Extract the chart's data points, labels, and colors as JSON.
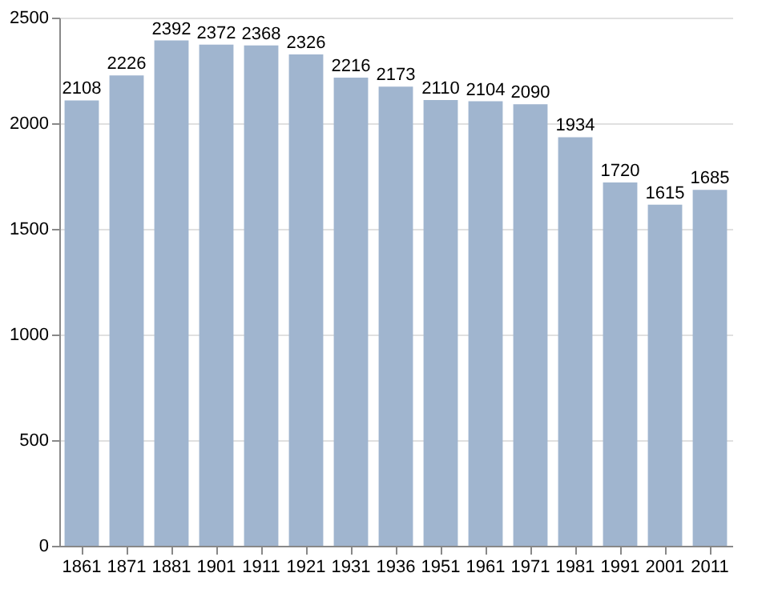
{
  "chart_data": {
    "type": "bar",
    "categories": [
      "1861",
      "1871",
      "1881",
      "1901",
      "1911",
      "1921",
      "1931",
      "1936",
      "1951",
      "1961",
      "1971",
      "1981",
      "1991",
      "2001",
      "2011"
    ],
    "values": [
      2108,
      2226,
      2392,
      2372,
      2368,
      2326,
      2216,
      2173,
      2110,
      2104,
      2090,
      1934,
      1720,
      1615,
      1685
    ],
    "color": "#a0b5cf",
    "ylim": [
      0,
      2500
    ],
    "yticks": [
      0,
      500,
      1000,
      1500,
      2000,
      2500
    ],
    "grid": "y",
    "data_labels": true
  }
}
